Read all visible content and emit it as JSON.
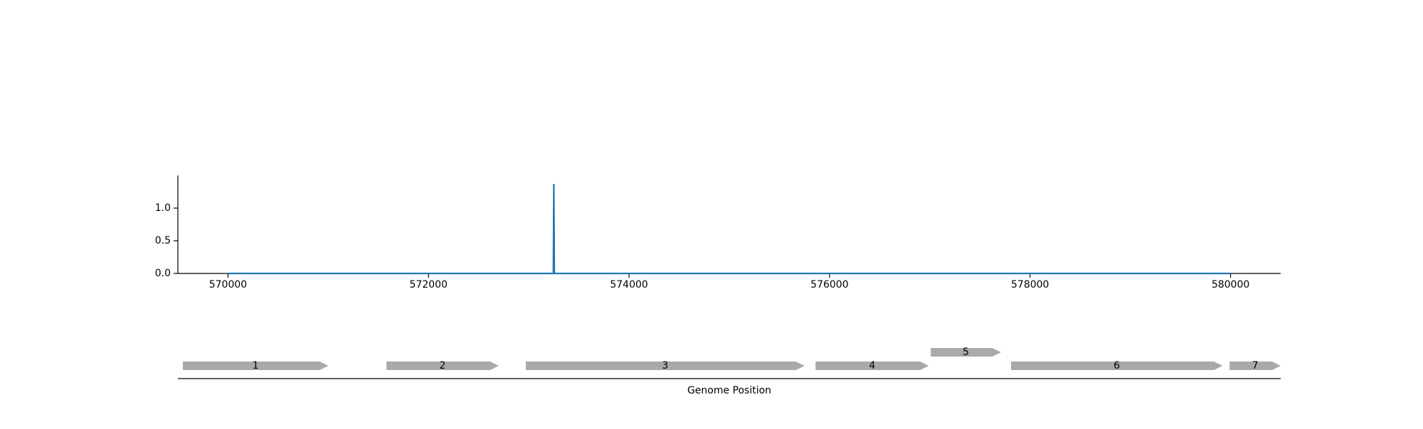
{
  "chart_data": [
    {
      "type": "line",
      "title": "",
      "xlabel": "",
      "ylabel": "",
      "xlim": [
        569500,
        580500
      ],
      "ylim": [
        0,
        1.5
      ],
      "x_ticks": [
        570000,
        572000,
        574000,
        576000,
        578000,
        580000
      ],
      "x_tick_labels": [
        "570000",
        "572000",
        "574000",
        "576000",
        "578000",
        "580000"
      ],
      "y_ticks": [
        0.0,
        0.5,
        1.0
      ],
      "y_tick_labels": [
        "0.0",
        "0.5",
        "1.0"
      ],
      "grid": false,
      "legend": "none",
      "color": "#1f77b4",
      "series": [
        {
          "x": [
            570000,
            573245,
            573250,
            573255,
            580000
          ],
          "y": [
            0,
            0,
            1.37,
            0,
            0
          ]
        }
      ]
    },
    {
      "type": "gene-track",
      "xlabel": "Genome Position",
      "xlim": [
        569500,
        580500
      ],
      "color": "#a9a9a9",
      "genes": [
        {
          "label": "1",
          "start": 569550,
          "end": 571000,
          "strand": "+",
          "row": 0
        },
        {
          "label": "2",
          "start": 571580,
          "end": 572700,
          "strand": "+",
          "row": 0
        },
        {
          "label": "3",
          "start": 572970,
          "end": 575750,
          "strand": "+",
          "row": 0
        },
        {
          "label": "4",
          "start": 575860,
          "end": 576990,
          "strand": "+",
          "row": 0
        },
        {
          "label": "5",
          "start": 577010,
          "end": 577710,
          "strand": "+",
          "row": 1
        },
        {
          "label": "6",
          "start": 577810,
          "end": 579920,
          "strand": "+",
          "row": 0
        },
        {
          "label": "7",
          "start": 579990,
          "end": 580500,
          "strand": "+",
          "row": 0
        }
      ]
    }
  ]
}
